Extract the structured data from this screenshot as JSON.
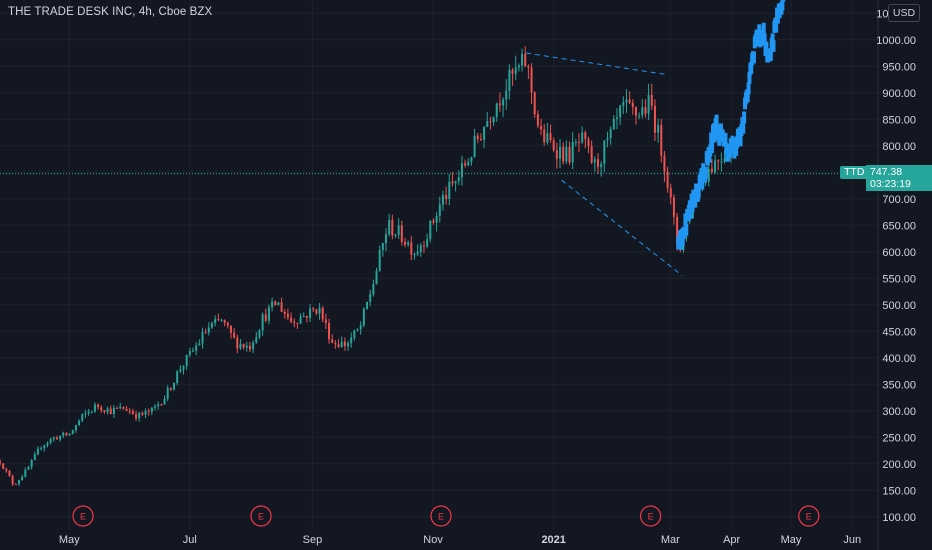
{
  "header": {
    "title": "THE TRADE DESK INC, 4h, Cboe BZX",
    "currency": "USD"
  },
  "last_price": {
    "symbol": "TTD",
    "price": "747.38",
    "countdown": "03:23:19"
  },
  "colors": {
    "background": "#131722",
    "up": "#26a69a",
    "down": "#ef5350",
    "projection": "#2196f3",
    "trendline": "#2196f3",
    "earnings": "#f23645"
  },
  "chart_data": {
    "type": "candlestick",
    "interval": "4h",
    "y_axis": {
      "position": "right",
      "ticks": [
        "100.00",
        "150.00",
        "200.00",
        "250.00",
        "300.00",
        "350.00",
        "400.00",
        "450.00",
        "500.00",
        "550.00",
        "600.00",
        "650.00",
        "700.00",
        "750.00",
        "800.00",
        "850.00",
        "900.00",
        "950.00",
        "1000.00",
        "1050.00"
      ],
      "ylim": [
        75,
        1075
      ]
    },
    "x_axis": {
      "ticks": [
        {
          "label": "May",
          "date": "2020-05-01"
        },
        {
          "label": "Jul",
          "date": "2020-07-01"
        },
        {
          "label": "Sep",
          "date": "2020-09-01"
        },
        {
          "label": "Nov",
          "date": "2020-11-01"
        },
        {
          "label": "2021",
          "date": "2021-01-01",
          "bold": true
        },
        {
          "label": "Mar",
          "date": "2021-03-01"
        },
        {
          "label": "Apr",
          "date": "2021-04-01"
        },
        {
          "label": "May",
          "date": "2021-05-01"
        },
        {
          "label": "Jun",
          "date": "2021-06-01"
        }
      ],
      "xlim": [
        "2020-03-27",
        "2021-06-14"
      ]
    },
    "price_path": [
      [
        "2020-03-27",
        205
      ],
      [
        "2020-04-03",
        160
      ],
      [
        "2020-04-10",
        190
      ],
      [
        "2020-04-17",
        235
      ],
      [
        "2020-04-24",
        250
      ],
      [
        "2020-05-01",
        255
      ],
      [
        "2020-05-08",
        290
      ],
      [
        "2020-05-15",
        310
      ],
      [
        "2020-05-22",
        300
      ],
      [
        "2020-05-29",
        305
      ],
      [
        "2020-06-05",
        290
      ],
      [
        "2020-06-12",
        300
      ],
      [
        "2020-06-19",
        330
      ],
      [
        "2020-06-26",
        380
      ],
      [
        "2020-07-03",
        415
      ],
      [
        "2020-07-10",
        455
      ],
      [
        "2020-07-17",
        470
      ],
      [
        "2020-07-24",
        430
      ],
      [
        "2020-07-31",
        420
      ],
      [
        "2020-08-07",
        475
      ],
      [
        "2020-08-14",
        505
      ],
      [
        "2020-08-21",
        470
      ],
      [
        "2020-08-28",
        480
      ],
      [
        "2020-09-04",
        495
      ],
      [
        "2020-09-11",
        430
      ],
      [
        "2020-09-18",
        425
      ],
      [
        "2020-09-25",
        455
      ],
      [
        "2020-10-02",
        545
      ],
      [
        "2020-10-09",
        650
      ],
      [
        "2020-10-16",
        630
      ],
      [
        "2020-10-23",
        600
      ],
      [
        "2020-10-30",
        640
      ],
      [
        "2020-11-06",
        700
      ],
      [
        "2020-11-13",
        735
      ],
      [
        "2020-11-20",
        785
      ],
      [
        "2020-11-27",
        840
      ],
      [
        "2020-12-04",
        890
      ],
      [
        "2020-12-11",
        930
      ],
      [
        "2020-12-18",
        960
      ],
      [
        "2020-12-25",
        820
      ],
      [
        "2021-01-01",
        800
      ],
      [
        "2021-01-08",
        780
      ],
      [
        "2021-01-15",
        810
      ],
      [
        "2021-01-22",
        760
      ],
      [
        "2021-01-29",
        810
      ],
      [
        "2021-02-05",
        870
      ],
      [
        "2021-02-12",
        860
      ],
      [
        "2021-02-19",
        880
      ],
      [
        "2021-02-26",
        770
      ],
      [
        "2021-03-05",
        600
      ],
      [
        "2021-03-12",
        690
      ],
      [
        "2021-03-19",
        750
      ],
      [
        "2021-03-26",
        780
      ],
      [
        "2021-04-02",
        800
      ]
    ],
    "projection_path": [
      [
        "2021-03-05",
        610
      ],
      [
        "2021-03-12",
        690
      ],
      [
        "2021-03-19",
        760
      ],
      [
        "2021-03-24",
        840
      ],
      [
        "2021-03-30",
        790
      ],
      [
        "2021-04-02",
        800
      ],
      [
        "2021-04-06",
        820
      ],
      [
        "2021-04-09",
        900
      ],
      [
        "2021-04-13",
        1000
      ],
      [
        "2021-04-17",
        1010
      ],
      [
        "2021-04-20",
        960
      ],
      [
        "2021-04-24",
        1040
      ],
      [
        "2021-04-28",
        1090
      ]
    ],
    "trendlines": [
      {
        "from": [
          "2020-12-18",
          975
        ],
        "to": [
          "2021-02-26",
          935
        ]
      },
      {
        "from": [
          "2021-01-05",
          735
        ],
        "to": [
          "2021-03-07",
          555
        ]
      }
    ],
    "last_price_line": 747.38,
    "earnings_markers": [
      "2020-05-08",
      "2020-08-06",
      "2020-11-05",
      "2021-02-19",
      "2021-05-10"
    ],
    "earnings_label": "E"
  }
}
